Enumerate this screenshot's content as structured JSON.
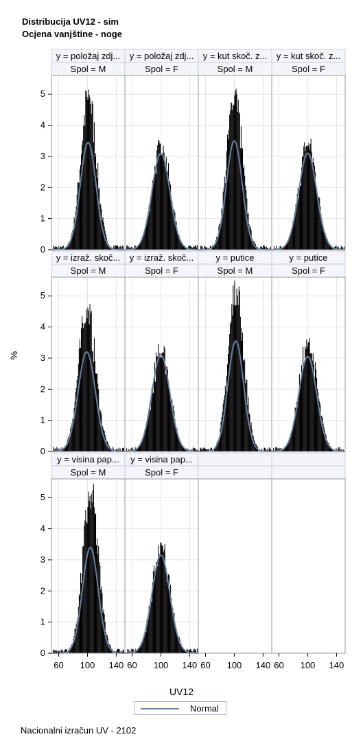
{
  "title_line1": "Distribucija UV12 - sim",
  "title_line2": "Ocjena vanjštine - noge",
  "footnote": "Nacionalni izračun UV - 2102",
  "legend": {
    "normal_label": "Normal",
    "normal_color": "#6a80a0"
  },
  "colors": {
    "bar": "#000000",
    "grid": "#e4e4e4",
    "header_bg": "#f3f5fb",
    "frame": "#999999"
  },
  "chart_data": {
    "type": "bar",
    "xlabel": "UV12",
    "ylabel": "%",
    "xlim": [
      50,
      152
    ],
    "ylim": [
      0,
      5.6
    ],
    "xticks": [
      60,
      100,
      140
    ],
    "yticks": [
      0,
      1,
      2,
      3,
      4,
      5
    ],
    "grid": true,
    "legend_position": "bottom",
    "panels": [
      {
        "row": 0,
        "col": 0,
        "y": "y = položaj zdj...",
        "spol": "Spol = M",
        "peak": 5.2,
        "mean": 101,
        "sd": 11,
        "normal_peak": 3.45
      },
      {
        "row": 0,
        "col": 1,
        "y": "y = položaj zdj...",
        "spol": "Spol = F",
        "peak": 3.55,
        "mean": 100,
        "sd": 12.5,
        "normal_peak": 3.1
      },
      {
        "row": 0,
        "col": 2,
        "y": "y = kut skoč. z...",
        "spol": "Spol = M",
        "peak": 5.25,
        "mean": 100,
        "sd": 11,
        "normal_peak": 3.5
      },
      {
        "row": 0,
        "col": 3,
        "y": "y = kut skoč. z...",
        "spol": "Spol = F",
        "peak": 3.6,
        "mean": 100,
        "sd": 12.5,
        "normal_peak": 3.1
      },
      {
        "row": 1,
        "col": 0,
        "y": "y = izraž. skoč...",
        "spol": "Spol = M",
        "peak": 4.8,
        "mean": 99,
        "sd": 12,
        "normal_peak": 3.2
      },
      {
        "row": 1,
        "col": 1,
        "y": "y = izraž. skoč...",
        "spol": "Spol = F",
        "peak": 3.5,
        "mean": 100,
        "sd": 12.5,
        "normal_peak": 3.1
      },
      {
        "row": 1,
        "col": 2,
        "y": "y = putice",
        "spol": "Spol = M",
        "peak": 5.5,
        "mean": 102,
        "sd": 11,
        "normal_peak": 3.55
      },
      {
        "row": 1,
        "col": 3,
        "y": "y = putice",
        "spol": "Spol = F",
        "peak": 3.7,
        "mean": 100,
        "sd": 12.5,
        "normal_peak": 3.05
      },
      {
        "row": 2,
        "col": 0,
        "y": "y = visina pap...",
        "spol": "Spol = M",
        "peak": 5.4,
        "mean": 104,
        "sd": 11,
        "normal_peak": 3.4
      },
      {
        "row": 2,
        "col": 1,
        "y": "y = visina pap...",
        "spol": "Spol = F",
        "peak": 3.6,
        "mean": 100,
        "sd": 12.5,
        "normal_peak": 3.15
      }
    ]
  }
}
